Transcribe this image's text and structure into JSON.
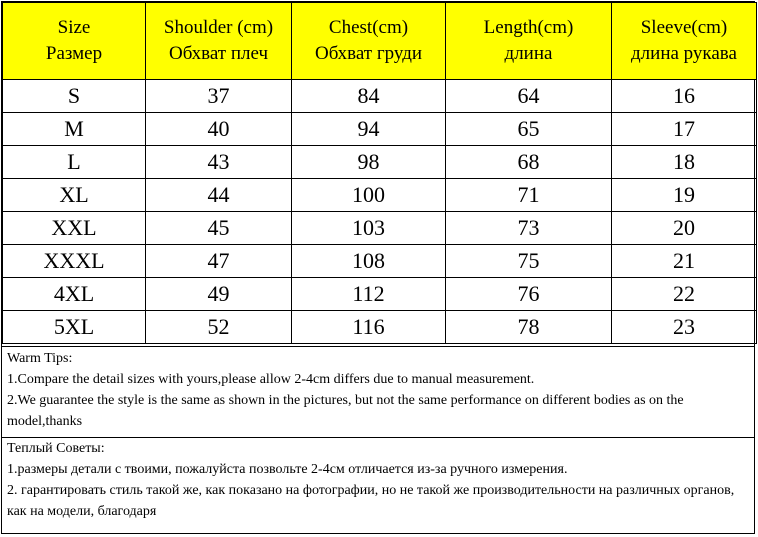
{
  "headers": [
    {
      "en": "Size",
      "ru": "Размер"
    },
    {
      "en": "Shoulder (cm)",
      "ru": "Обхват плеч"
    },
    {
      "en": "Chest(cm)",
      "ru": "Обхват груди"
    },
    {
      "en": "Length(cm)",
      "ru": "длина"
    },
    {
      "en": "Sleeve(cm)",
      "ru": "длина рукава"
    }
  ],
  "rows": [
    [
      "S",
      "37",
      "84",
      "64",
      "16"
    ],
    [
      "M",
      "40",
      "94",
      "65",
      "17"
    ],
    [
      "L",
      "43",
      "98",
      "68",
      "18"
    ],
    [
      "XL",
      "44",
      "100",
      "71",
      "19"
    ],
    [
      "XXL",
      "45",
      "103",
      "73",
      "20"
    ],
    [
      "XXXL",
      "47",
      "108",
      "75",
      "21"
    ],
    [
      "4XL",
      "49",
      "112",
      "76",
      "22"
    ],
    [
      "5XL",
      "52",
      "116",
      "78",
      "23"
    ]
  ],
  "tips_en": {
    "title": "Warm Tips:",
    "lines": [
      "1.Compare the detail sizes with yours,please allow 2-4cm differs due to manual measurement.",
      "2.We guarantee the style is the same as shown in the pictures, but not the same performance on different bodies as on the model,thanks"
    ]
  },
  "tips_ru": {
    "title": "Теплый Советы:",
    "lines": [
      "1.размеры детали с твоими, пожалуйста позвольте 2-4см отличается из-за ручного измерения.",
      "2. гарантировать стиль такой же, как показано на фотографии, но не такой же производительности на различных органов, как на модели, благодаря"
    ]
  }
}
